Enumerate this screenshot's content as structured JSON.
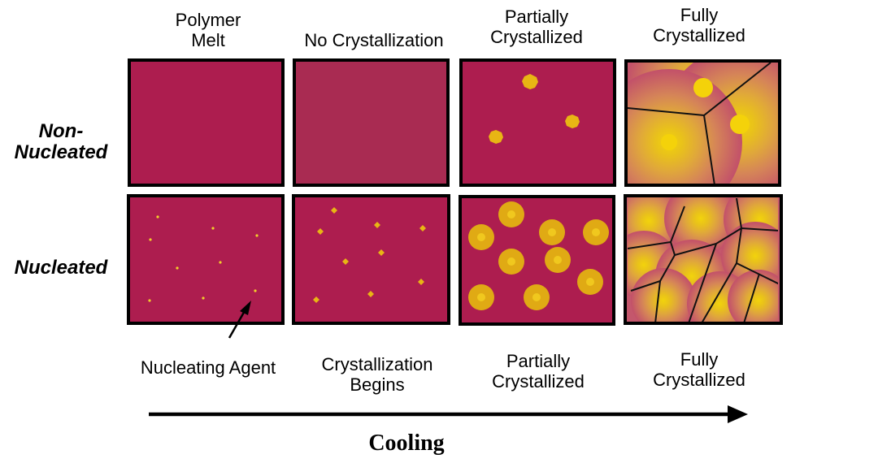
{
  "column_headers": [
    "Polymer\nMelt",
    "No Crystallization",
    "Partially\nCrystallized",
    "Fully\nCrystallized"
  ],
  "row_labels": [
    "Non-\nNucleated",
    "Nucleated"
  ],
  "bottom_labels": {
    "nucleating_agent": "Nucleating Agent",
    "stage2": "Crystallization\nBegins",
    "stage3": "Partially\nCrystallized",
    "stage4": "Fully\nCrystallized"
  },
  "axis_label": "Cooling",
  "colors": {
    "melt": "#ad1d4f",
    "melt_alt": "#a92b52",
    "crystal": "#e4b712",
    "crystal_core": "#f4d20a",
    "border": "#000000"
  }
}
